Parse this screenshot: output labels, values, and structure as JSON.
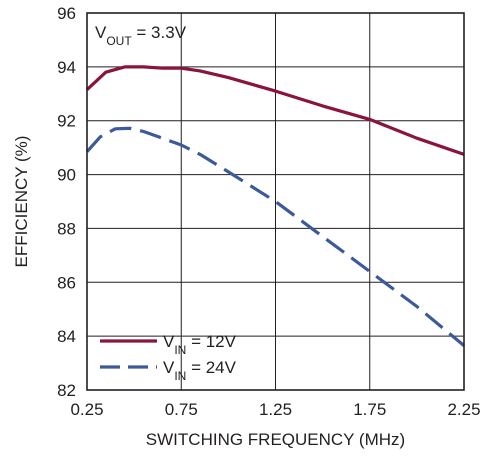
{
  "chart_data": {
    "type": "line",
    "title": "",
    "xlabel": "SWITCHING FREQUENCY (MHz)",
    "ylabel": "EFFICIENCY (%)",
    "xlim": [
      0.25,
      2.25
    ],
    "ylim": [
      82,
      96
    ],
    "x_ticks": [
      "0.25",
      "0.75",
      "1.25",
      "1.75",
      "2.25"
    ],
    "y_ticks": [
      "82",
      "84",
      "86",
      "88",
      "90",
      "92",
      "94",
      "96"
    ],
    "x_tick_values": [
      0.25,
      0.75,
      1.25,
      1.75,
      2.25
    ],
    "y_tick_values": [
      82,
      84,
      86,
      88,
      90,
      92,
      94,
      96
    ],
    "grid": true,
    "legend_position": "bottom-left",
    "annotation": {
      "prefix": "V",
      "subscript": "OUT",
      "suffix": " = 3.3V"
    },
    "series": [
      {
        "name_prefix": "V",
        "name_subscript": "IN",
        "name_suffix": " = 12V",
        "color": "#8b1538",
        "style": "solid",
        "x": [
          0.25,
          0.35,
          0.45,
          0.55,
          0.65,
          0.75,
          0.85,
          1.0,
          1.25,
          1.5,
          1.75,
          2.0,
          2.25
        ],
        "y": [
          93.15,
          93.8,
          94.0,
          94.0,
          93.95,
          93.95,
          93.85,
          93.6,
          93.1,
          92.55,
          92.05,
          91.35,
          90.75
        ]
      },
      {
        "name_prefix": "V",
        "name_subscript": "IN",
        "name_suffix": " = 24V",
        "color": "#3c5a9a",
        "style": "dashed",
        "x": [
          0.25,
          0.32,
          0.4,
          0.48,
          0.55,
          0.65,
          0.75,
          0.85,
          1.0,
          1.25,
          1.5,
          1.75,
          2.0,
          2.25
        ],
        "y": [
          90.85,
          91.4,
          91.7,
          91.72,
          91.6,
          91.35,
          91.1,
          90.75,
          90.1,
          89.0,
          87.7,
          86.4,
          85.1,
          83.65
        ]
      }
    ]
  }
}
